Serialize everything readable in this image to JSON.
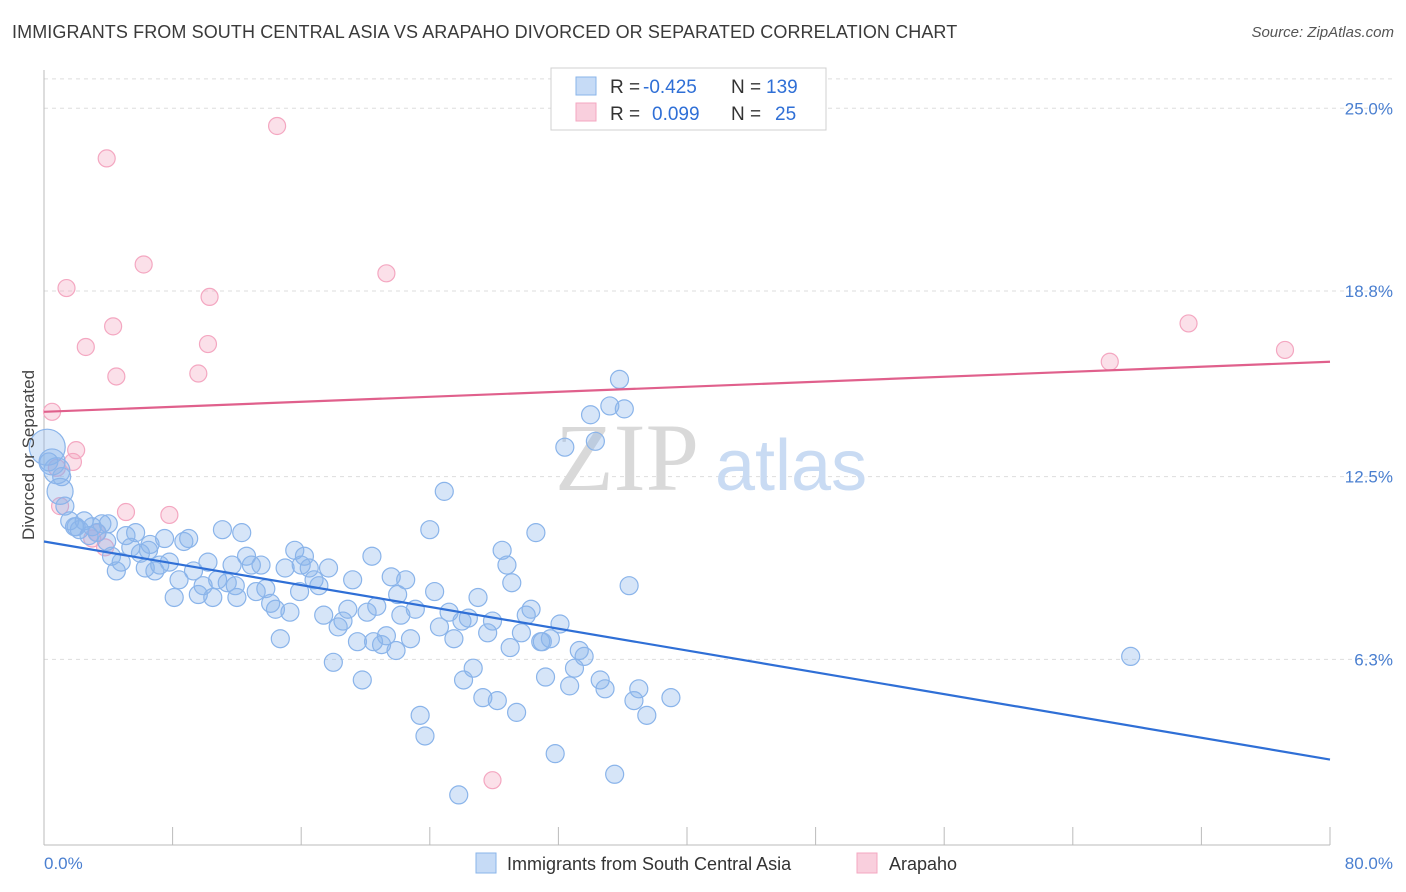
{
  "title": "IMMIGRANTS FROM SOUTH CENTRAL ASIA VS ARAPAHO DIVORCED OR SEPARATED CORRELATION CHART",
  "source": "Source: ZipAtlas.com",
  "watermark": {
    "zip": "ZIP",
    "atlas": "atlas"
  },
  "colors": {
    "blue": "#8ab4ea",
    "blue_line": "#2f6fd6",
    "pink": "#f4a7c1",
    "pink_line": "#e0608c",
    "grid": "#dddddd",
    "axis_text": "#4a7fd0"
  },
  "legend": {
    "rows": [
      {
        "r_label": "R =",
        "r_value": "-0.425",
        "n_label": "N =",
        "n_value": "139"
      },
      {
        "r_label": "R =",
        "r_value": "0.099",
        "n_label": "N =",
        "n_value": "25"
      }
    ]
  },
  "chart_data": {
    "type": "scatter",
    "title": "IMMIGRANTS FROM SOUTH CENTRAL ASIA VS ARAPAHO DIVORCED OR SEPARATED CORRELATION CHART",
    "xlabel": "",
    "ylabel": "Divorced or Separated",
    "xlim": [
      0,
      80
    ],
    "ylim": [
      0,
      26.3
    ],
    "x_tick_labels": [
      "0.0%",
      "80.0%"
    ],
    "y_ticks": [
      6.3,
      12.5,
      18.8,
      25.0
    ],
    "y_tick_labels": [
      "6.3%",
      "12.5%",
      "18.8%",
      "25.0%"
    ],
    "grid": true,
    "legend_position": "top-center",
    "series": [
      {
        "name": "Immigrants from South Central Asia",
        "color": "#8ab4ea",
        "trend": {
          "x": [
            0,
            80
          ],
          "y": [
            10.3,
            2.9
          ]
        },
        "points": [
          [
            0.2,
            13.5
          ],
          [
            0.5,
            13.0
          ],
          [
            0.8,
            12.7
          ],
          [
            1.0,
            12.0
          ],
          [
            1.3,
            11.5
          ],
          [
            1.6,
            11.0
          ],
          [
            1.9,
            10.8
          ],
          [
            2.2,
            10.7
          ],
          [
            2.5,
            11.0
          ],
          [
            2.8,
            10.5
          ],
          [
            3.0,
            10.8
          ],
          [
            3.3,
            10.6
          ],
          [
            3.6,
            10.9
          ],
          [
            3.9,
            10.3
          ],
          [
            4.2,
            9.8
          ],
          [
            4.5,
            9.3
          ],
          [
            4.8,
            9.6
          ],
          [
            5.1,
            10.5
          ],
          [
            5.4,
            10.1
          ],
          [
            5.7,
            10.6
          ],
          [
            6.0,
            9.9
          ],
          [
            6.3,
            9.4
          ],
          [
            6.6,
            10.2
          ],
          [
            6.9,
            9.3
          ],
          [
            7.2,
            9.5
          ],
          [
            7.5,
            10.4
          ],
          [
            7.8,
            9.6
          ],
          [
            8.1,
            8.4
          ],
          [
            8.4,
            9.0
          ],
          [
            8.7,
            10.3
          ],
          [
            9.0,
            10.4
          ],
          [
            9.3,
            9.3
          ],
          [
            9.6,
            8.5
          ],
          [
            9.9,
            8.8
          ],
          [
            10.2,
            9.6
          ],
          [
            10.5,
            8.4
          ],
          [
            10.8,
            9.0
          ],
          [
            11.1,
            10.7
          ],
          [
            11.4,
            8.9
          ],
          [
            11.7,
            9.5
          ],
          [
            12.0,
            8.4
          ],
          [
            12.3,
            10.6
          ],
          [
            12.6,
            9.8
          ],
          [
            12.9,
            9.5
          ],
          [
            13.2,
            8.6
          ],
          [
            13.5,
            9.5
          ],
          [
            13.8,
            8.7
          ],
          [
            14.1,
            8.2
          ],
          [
            14.4,
            8.0
          ],
          [
            14.7,
            7.0
          ],
          [
            15.0,
            9.4
          ],
          [
            15.3,
            7.9
          ],
          [
            15.6,
            10.0
          ],
          [
            15.9,
            8.6
          ],
          [
            16.2,
            9.8
          ],
          [
            16.5,
            9.4
          ],
          [
            16.8,
            9.0
          ],
          [
            17.1,
            8.8
          ],
          [
            17.4,
            7.8
          ],
          [
            17.7,
            9.4
          ],
          [
            18.0,
            6.2
          ],
          [
            18.3,
            7.4
          ],
          [
            18.6,
            7.6
          ],
          [
            18.9,
            8.0
          ],
          [
            19.2,
            9.0
          ],
          [
            19.5,
            6.9
          ],
          [
            19.8,
            5.6
          ],
          [
            20.1,
            7.9
          ],
          [
            20.4,
            9.8
          ],
          [
            20.7,
            8.1
          ],
          [
            21.0,
            6.8
          ],
          [
            21.3,
            7.1
          ],
          [
            21.6,
            9.1
          ],
          [
            21.9,
            6.6
          ],
          [
            22.2,
            7.8
          ],
          [
            22.5,
            9.0
          ],
          [
            22.8,
            7.0
          ],
          [
            23.1,
            8.0
          ],
          [
            23.4,
            4.4
          ],
          [
            23.7,
            3.7
          ],
          [
            24.0,
            10.7
          ],
          [
            24.3,
            8.6
          ],
          [
            24.6,
            7.4
          ],
          [
            24.9,
            12.0
          ],
          [
            25.2,
            7.9
          ],
          [
            25.5,
            7.0
          ],
          [
            25.8,
            1.7
          ],
          [
            26.1,
            5.6
          ],
          [
            26.4,
            7.7
          ],
          [
            26.7,
            6.0
          ],
          [
            27.0,
            8.4
          ],
          [
            27.3,
            5.0
          ],
          [
            27.6,
            7.2
          ],
          [
            27.9,
            7.6
          ],
          [
            28.2,
            4.9
          ],
          [
            28.5,
            10.0
          ],
          [
            28.8,
            9.5
          ],
          [
            29.1,
            8.9
          ],
          [
            29.4,
            4.5
          ],
          [
            29.7,
            7.2
          ],
          [
            30.0,
            7.8
          ],
          [
            30.3,
            8.0
          ],
          [
            30.6,
            10.6
          ],
          [
            30.9,
            6.9
          ],
          [
            31.2,
            5.7
          ],
          [
            31.5,
            7.0
          ],
          [
            31.8,
            3.1
          ],
          [
            32.1,
            7.5
          ],
          [
            32.4,
            13.5
          ],
          [
            32.7,
            5.4
          ],
          [
            33.0,
            6.0
          ],
          [
            33.3,
            6.6
          ],
          [
            33.6,
            6.4
          ],
          [
            34.0,
            14.6
          ],
          [
            34.3,
            13.7
          ],
          [
            34.6,
            5.6
          ],
          [
            34.9,
            5.3
          ],
          [
            35.2,
            14.9
          ],
          [
            35.5,
            2.4
          ],
          [
            35.8,
            15.8
          ],
          [
            36.1,
            14.8
          ],
          [
            36.4,
            8.8
          ],
          [
            36.7,
            4.9
          ],
          [
            37.0,
            5.3
          ],
          [
            37.5,
            4.4
          ],
          [
            39.0,
            5.0
          ],
          [
            67.6,
            6.4
          ],
          [
            0.3,
            13.0
          ],
          [
            1.1,
            12.5
          ],
          [
            2.0,
            10.8
          ],
          [
            4.0,
            10.9
          ],
          [
            6.5,
            10.0
          ],
          [
            11.9,
            8.8
          ],
          [
            16.0,
            9.5
          ],
          [
            20.5,
            6.9
          ],
          [
            22.0,
            8.5
          ],
          [
            26.0,
            7.6
          ],
          [
            29.0,
            6.7
          ],
          [
            31.0,
            6.9
          ]
        ]
      },
      {
        "name": "Arapaho",
        "color": "#f4a7c1",
        "trend": {
          "x": [
            0,
            80
          ],
          "y": [
            14.7,
            16.4
          ]
        },
        "points": [
          [
            0.5,
            14.7
          ],
          [
            1.0,
            11.5
          ],
          [
            1.4,
            18.9
          ],
          [
            1.8,
            13.0
          ],
          [
            2.0,
            13.4
          ],
          [
            2.6,
            16.9
          ],
          [
            3.0,
            10.4
          ],
          [
            3.3,
            10.6
          ],
          [
            3.8,
            10.1
          ],
          [
            3.9,
            23.3
          ],
          [
            4.3,
            17.6
          ],
          [
            4.5,
            15.9
          ],
          [
            5.1,
            11.3
          ],
          [
            6.2,
            19.7
          ],
          [
            7.8,
            11.2
          ],
          [
            9.6,
            16.0
          ],
          [
            10.2,
            17.0
          ],
          [
            10.3,
            18.6
          ],
          [
            14.5,
            24.4
          ],
          [
            21.3,
            19.4
          ],
          [
            27.9,
            2.2
          ],
          [
            66.3,
            16.4
          ],
          [
            71.2,
            17.7
          ],
          [
            77.2,
            16.8
          ],
          [
            0.8,
            12.8
          ]
        ]
      }
    ]
  },
  "bottom_legend": [
    {
      "label": "Immigrants from South Central Asia"
    },
    {
      "label": "Arapaho"
    }
  ]
}
